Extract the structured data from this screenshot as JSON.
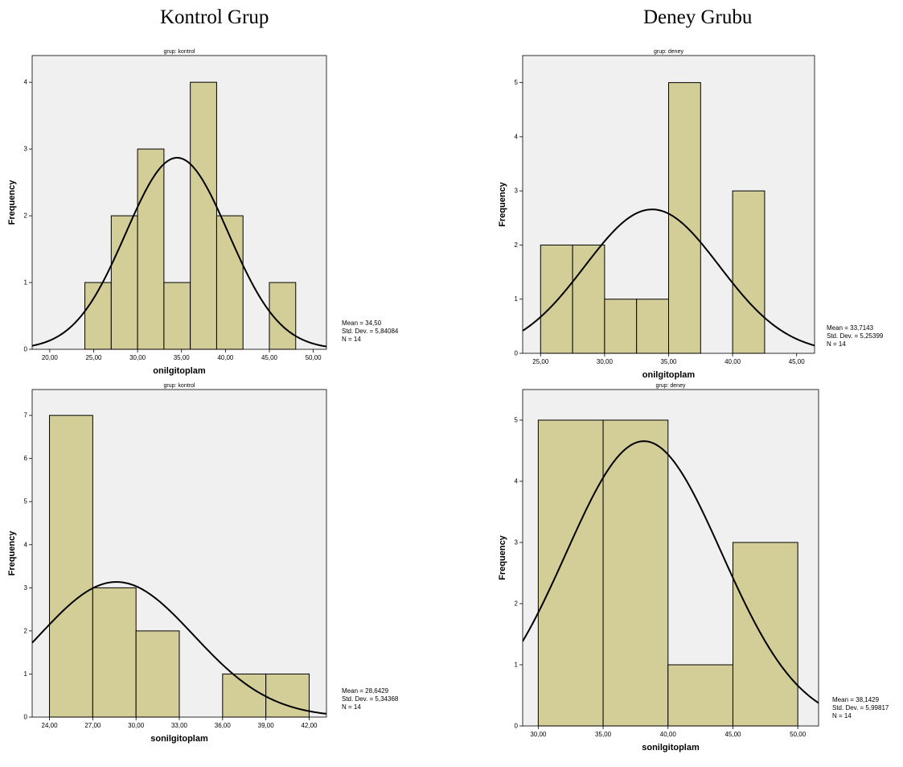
{
  "column_titles": {
    "left": "Kontrol Grup",
    "right": "Deney Grubu"
  },
  "colors": {
    "bar_fill": "#d3cd98",
    "bar_stroke": "#000000",
    "plot_background": "#f0f0f0",
    "curve": "#000000"
  },
  "chart_data": [
    {
      "id": "kontrol-onilgitoplam",
      "type": "bar",
      "title": "grup: kontrol",
      "xlabel": "onilgitoplam",
      "ylabel": "Frequency",
      "xlim": [
        18,
        51.5
      ],
      "ylim": [
        0,
        4.4
      ],
      "xticks": [
        20,
        25,
        30,
        35,
        40,
        45,
        50
      ],
      "xtick_labels": [
        "20,00",
        "25,00",
        "30,00",
        "35,00",
        "40,00",
        "45,00",
        "50,00"
      ],
      "yticks": [
        0,
        1,
        2,
        3,
        4
      ],
      "yticks_labels": [
        "0",
        "1",
        "2",
        "3",
        "4"
      ],
      "bin_edges": [
        24,
        27,
        30,
        33,
        36,
        39,
        42,
        45,
        48
      ],
      "values": [
        1,
        2,
        3,
        1,
        4,
        2,
        0,
        1
      ],
      "normal_curve": {
        "mean": 34.5,
        "sd": 5.84084,
        "n": 14,
        "bin_width": 3
      },
      "stats": {
        "mean": "Mean = 34,50",
        "sd": "Std. Dev. = 5,84084",
        "n": "N = 14"
      },
      "grid": false
    },
    {
      "id": "deney-onilgitoplam",
      "type": "bar",
      "title": "grup: deney",
      "xlabel": "onilgitoplam",
      "ylabel": "Frequency",
      "xlim": [
        23.6,
        46.4
      ],
      "ylim": [
        0,
        5.5
      ],
      "xticks": [
        25,
        30,
        35,
        40,
        45
      ],
      "xtick_labels": [
        "25,00",
        "30,00",
        "35,00",
        "40,00",
        "45,00"
      ],
      "yticks": [
        0,
        1,
        2,
        3,
        4,
        5
      ],
      "yticks_labels": [
        "0",
        "1",
        "2",
        "3",
        "4",
        "5"
      ],
      "bin_edges": [
        25,
        27.5,
        30,
        32.5,
        35,
        37.5,
        40,
        42.5
      ],
      "values": [
        2,
        2,
        1,
        1,
        5,
        0,
        3
      ],
      "normal_curve": {
        "mean": 33.7143,
        "sd": 5.25399,
        "n": 14,
        "bin_width": 2.5
      },
      "stats": {
        "mean": "Mean = 33,7143",
        "sd": "Std. Dev. = 5,25399",
        "n": "N = 14"
      },
      "grid": false
    },
    {
      "id": "kontrol-sonilgitoplam",
      "type": "bar",
      "title": "grup: kontrol",
      "xlabel": "sonilgitoplam",
      "ylabel": "Frequency",
      "xlim": [
        22.8,
        43.2
      ],
      "ylim": [
        0,
        7.6
      ],
      "xticks": [
        24,
        27,
        30,
        33,
        36,
        39,
        42
      ],
      "xtick_labels": [
        "24,00",
        "27,00",
        "30,00",
        "33,00",
        "36,00",
        "39,00",
        "42,00"
      ],
      "yticks": [
        0,
        1,
        2,
        3,
        4,
        5,
        6,
        7
      ],
      "yticks_labels": [
        "0",
        "1",
        "2",
        "3",
        "4",
        "5",
        "6",
        "7"
      ],
      "bin_edges": [
        24,
        27,
        30,
        33,
        36,
        39,
        42
      ],
      "values": [
        7,
        3,
        2,
        0,
        1,
        1
      ],
      "normal_curve": {
        "mean": 28.6429,
        "sd": 5.34368,
        "n": 14,
        "bin_width": 3
      },
      "stats": {
        "mean": "Mean = 28,6429",
        "sd": "Std. Dev. = 5,34368",
        "n": "N = 14"
      },
      "grid": false
    },
    {
      "id": "deney-sonilgitoplam",
      "type": "bar",
      "title": "grup: deney",
      "xlabel": "sonilgitoplam",
      "ylabel": "Frequency",
      "xlim": [
        28.8,
        51.6
      ],
      "ylim": [
        0,
        5.5
      ],
      "xticks": [
        30,
        35,
        40,
        45,
        50
      ],
      "xtick_labels": [
        "30,00",
        "35,00",
        "40,00",
        "45,00",
        "50,00"
      ],
      "yticks": [
        0,
        1,
        2,
        3,
        4,
        5
      ],
      "yticks_labels": [
        "0",
        "1",
        "2",
        "3",
        "4",
        "5"
      ],
      "bin_edges": [
        30,
        35,
        40,
        45,
        50
      ],
      "values": [
        5,
        5,
        1,
        3
      ],
      "normal_curve": {
        "mean": 38.1429,
        "sd": 5.99817,
        "n": 14,
        "bin_width": 5
      },
      "stats": {
        "mean": "Mean = 38,1429",
        "sd": "Std. Dev. = 5,99817",
        "n": "N = 14"
      },
      "grid": false
    }
  ]
}
